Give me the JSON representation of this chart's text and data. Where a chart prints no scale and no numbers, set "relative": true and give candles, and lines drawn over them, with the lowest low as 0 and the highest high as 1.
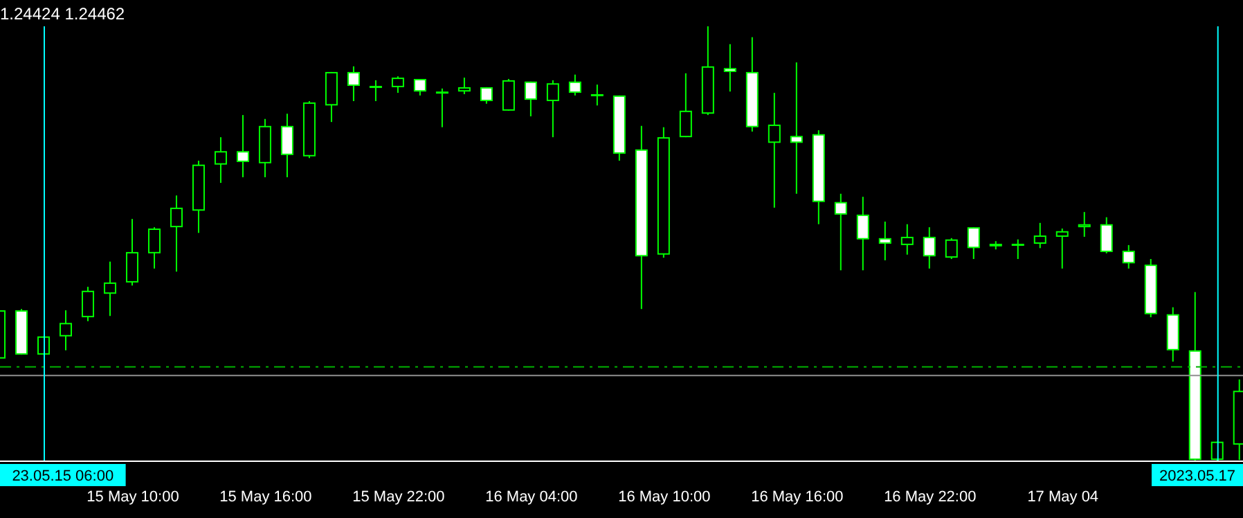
{
  "chart_data": {
    "type": "candlestick",
    "relative": true,
    "color": "#00ff00",
    "x": [
      "2023-05-15T04:00",
      "2023-05-15T05:00",
      "2023-05-15T06:00",
      "2023-05-15T07:00",
      "2023-05-15T08:00",
      "2023-05-15T09:00",
      "2023-05-15T10:00",
      "2023-05-15T11:00",
      "2023-05-15T12:00",
      "2023-05-15T13:00",
      "2023-05-15T14:00",
      "2023-05-15T15:00",
      "2023-05-15T16:00",
      "2023-05-15T17:00",
      "2023-05-15T18:00",
      "2023-05-15T19:00",
      "2023-05-15T20:00",
      "2023-05-15T21:00",
      "2023-05-15T22:00",
      "2023-05-15T23:00",
      "2023-05-16T00:00",
      "2023-05-16T01:00",
      "2023-05-16T02:00",
      "2023-05-16T03:00",
      "2023-05-16T04:00",
      "2023-05-16T05:00",
      "2023-05-16T06:00",
      "2023-05-16T07:00",
      "2023-05-16T08:00",
      "2023-05-16T09:00",
      "2023-05-16T10:00",
      "2023-05-16T11:00",
      "2023-05-16T12:00",
      "2023-05-16T13:00",
      "2023-05-16T14:00",
      "2023-05-16T15:00",
      "2023-05-16T16:00",
      "2023-05-16T17:00",
      "2023-05-16T18:00",
      "2023-05-16T19:00",
      "2023-05-16T20:00",
      "2023-05-16T21:00",
      "2023-05-16T22:00",
      "2023-05-16T23:00",
      "2023-05-17T00:00",
      "2023-05-17T01:00",
      "2023-05-17T02:00",
      "2023-05-17T03:00",
      "2023-05-17T04:00",
      "2023-05-17T05:00",
      "2023-05-17T06:00",
      "2023-05-17T07:00",
      "2023-05-17T08:00",
      "2023-05-17T09:00",
      "2023-05-17T10:00",
      "2023-05-17T11:00",
      "2023-05-17T12:00"
    ],
    "ohlc": [
      [
        0.236,
        0.347,
        0.236,
        0.347
      ],
      [
        0.347,
        0.35,
        0.245,
        0.245
      ],
      [
        0.245,
        0.287,
        0.245,
        0.287
      ],
      [
        0.287,
        0.347,
        0.255,
        0.318
      ],
      [
        0.331,
        0.401,
        0.322,
        0.392
      ],
      [
        0.385,
        0.459,
        0.334,
        0.411
      ],
      [
        0.411,
        0.557,
        0.404,
        0.481
      ],
      [
        0.478,
        0.538,
        0.443,
        0.535
      ],
      [
        0.538,
        0.611,
        0.436,
        0.583
      ],
      [
        0.576,
        0.691,
        0.525,
        0.682
      ],
      [
        0.682,
        0.745,
        0.64,
        0.713
      ],
      [
        0.713,
        0.796,
        0.653,
        0.688
      ],
      [
        0.685,
        0.787,
        0.653,
        0.771
      ],
      [
        0.771,
        0.799,
        0.653,
        0.704
      ],
      [
        0.701,
        0.828,
        0.697,
        0.825
      ],
      [
        0.818,
        0.895,
        0.78,
        0.895
      ],
      [
        0.895,
        0.908,
        0.828,
        0.863
      ],
      [
        0.863,
        0.876,
        0.828,
        0.863
      ],
      [
        0.86,
        0.885,
        0.847,
        0.882
      ],
      [
        0.879,
        0.879,
        0.841,
        0.85
      ],
      [
        0.85,
        0.857,
        0.768,
        0.85
      ],
      [
        0.85,
        0.882,
        0.844,
        0.86
      ],
      [
        0.86,
        0.86,
        0.822,
        0.828
      ],
      [
        0.806,
        0.879,
        0.806,
        0.876
      ],
      [
        0.873,
        0.873,
        0.793,
        0.831
      ],
      [
        0.828,
        0.876,
        0.745,
        0.869
      ],
      [
        0.873,
        0.889,
        0.841,
        0.847
      ],
      [
        0.844,
        0.866,
        0.818,
        0.844
      ],
      [
        0.841,
        0.841,
        0.691,
        0.707
      ],
      [
        0.717,
        0.771,
        0.35,
        0.471
      ],
      [
        0.475,
        0.768,
        0.468,
        0.745
      ],
      [
        0.745,
        0.892,
        0.745,
        0.806
      ],
      [
        0.799,
        1,
        0.796,
        0.908
      ],
      [
        0.904,
        0.959,
        0.85,
        0.895
      ],
      [
        0.895,
        0.975,
        0.758,
        0.768
      ],
      [
        0.732,
        0.847,
        0.583,
        0.774
      ],
      [
        0.748,
        0.917,
        0.615,
        0.732
      ],
      [
        0.752,
        0.761,
        0.545,
        0.596
      ],
      [
        0.596,
        0.615,
        0.439,
        0.567
      ],
      [
        0.567,
        0.608,
        0.439,
        0.51
      ],
      [
        0.513,
        0.551,
        0.462,
        0.5
      ],
      [
        0.497,
        0.545,
        0.475,
        0.516
      ],
      [
        0.516,
        0.538,
        0.443,
        0.471
      ],
      [
        0.468,
        0.513,
        0.465,
        0.51
      ],
      [
        0.538,
        0.538,
        0.465,
        0.49
      ],
      [
        0.494,
        0.506,
        0.487,
        0.5
      ],
      [
        0.5,
        0.51,
        0.465,
        0.5
      ],
      [
        0.5,
        0.548,
        0.49,
        0.519
      ],
      [
        0.516,
        0.535,
        0.443,
        0.529
      ],
      [
        0.538,
        0.573,
        0.516,
        0.545
      ],
      [
        0.545,
        0.561,
        0.478,
        0.481
      ],
      [
        0.484,
        0.497,
        0.443,
        0.455
      ],
      [
        0.452,
        0.465,
        0.331,
        0.338
      ],
      [
        0.338,
        0.354,
        0.229,
        0.255
      ],
      [
        0.255,
        0.389,
        0,
        0.003
      ],
      [
        0.003,
        0.045,
        0,
        0.045
      ],
      [
        0.038,
        0.188,
        0.003,
        0.162
      ]
    ],
    "xlim": [
      "2023-05-15T04:00",
      "2023-05-17T12:08"
    ],
    "xticks": [
      {
        "value": "2023-05-15T10:00",
        "label": "15 May 10:00"
      },
      {
        "value": "2023-05-15T16:00",
        "label": "15 May 16:00"
      },
      {
        "value": "2023-05-15T22:00",
        "label": "15 May 22:00"
      },
      {
        "value": "2023-05-16T04:00",
        "label": "16 May 04:00"
      },
      {
        "value": "2023-05-16T10:00",
        "label": "16 May 10:00"
      },
      {
        "value": "2023-05-16T16:00",
        "label": "16 May 16:00"
      },
      {
        "value": "2023-05-16T22:00",
        "label": "16 May 22:00"
      },
      {
        "value": "2023-05-17T04:00",
        "label": "17 May 04"
      }
    ],
    "ref_lines": [
      {
        "axis": "y",
        "value": 0.217,
        "color": "#00b000",
        "line_style": "dashed"
      },
      {
        "axis": "y",
        "value": 0.197,
        "color": "#909090",
        "line_style": "solid"
      },
      {
        "axis": "x",
        "value": "2023-05-15T06:00",
        "label": "23.05.15 06:00",
        "color": "#00ffff",
        "line_style": "solid"
      },
      {
        "axis": "x",
        "value": "2023-05-17T11:00",
        "label": "2023.05.17",
        "color": "#00ffff",
        "line_style": "solid"
      }
    ],
    "annotations": [
      "1.24424 1.24462"
    ]
  }
}
